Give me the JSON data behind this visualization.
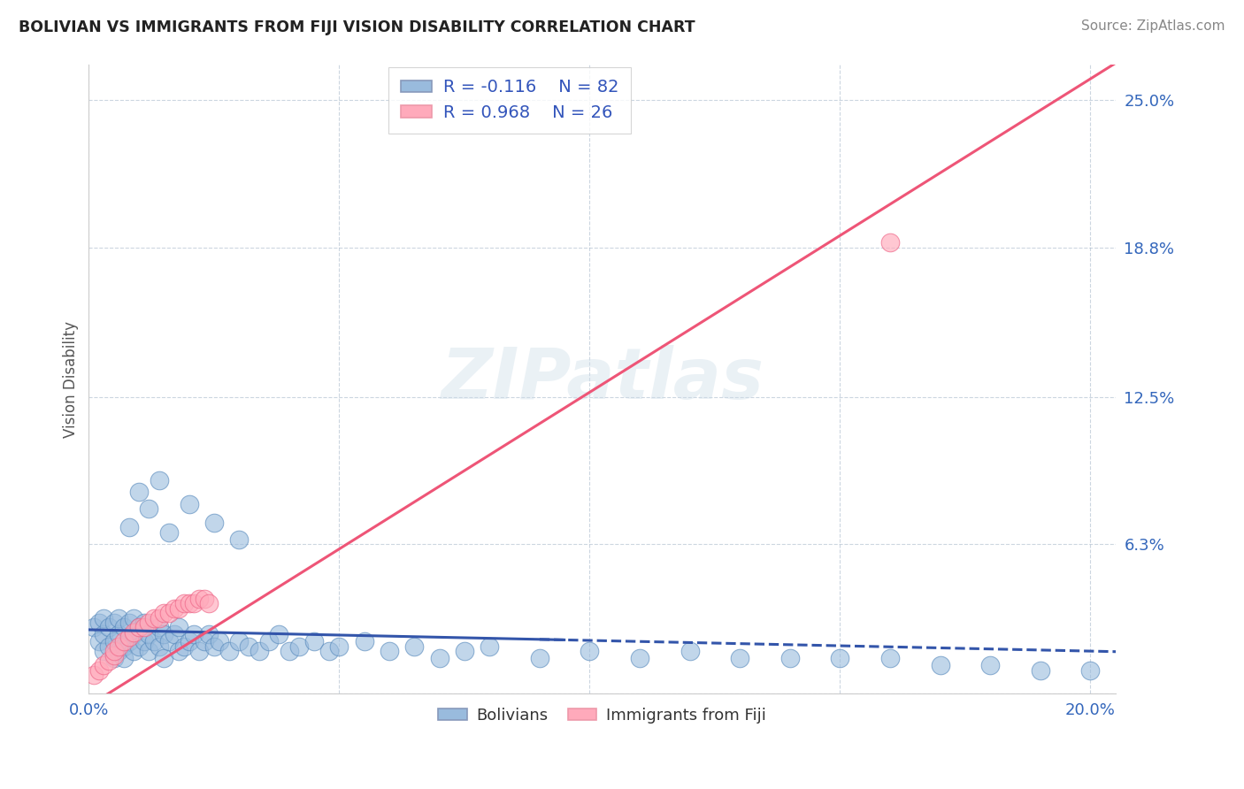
{
  "title": "BOLIVIAN VS IMMIGRANTS FROM FIJI VISION DISABILITY CORRELATION CHART",
  "source": "Source: ZipAtlas.com",
  "ylabel": "Vision Disability",
  "xlim": [
    0.0,
    0.205
  ],
  "ylim": [
    0.0,
    0.265
  ],
  "ytick_vals": [
    0.0,
    0.063,
    0.125,
    0.188,
    0.25
  ],
  "ytick_labels": [
    "",
    "6.3%",
    "12.5%",
    "18.8%",
    "25.0%"
  ],
  "xtick_vals": [
    0.0,
    0.05,
    0.1,
    0.15,
    0.2
  ],
  "xtick_labels": [
    "0.0%",
    "",
    "",
    "",
    "20.0%"
  ],
  "watermark": "ZIPatlas",
  "blue_color": "#99BBDD",
  "blue_edge": "#5588BB",
  "pink_color": "#FFAABB",
  "pink_edge": "#EE6688",
  "line_blue_color": "#3355AA",
  "line_pink_color": "#EE5577",
  "bolivians_x": [
    0.001,
    0.002,
    0.002,
    0.003,
    0.003,
    0.003,
    0.004,
    0.004,
    0.005,
    0.005,
    0.005,
    0.006,
    0.006,
    0.006,
    0.007,
    0.007,
    0.007,
    0.008,
    0.008,
    0.009,
    0.009,
    0.009,
    0.01,
    0.01,
    0.011,
    0.011,
    0.012,
    0.012,
    0.013,
    0.014,
    0.014,
    0.015,
    0.015,
    0.016,
    0.017,
    0.018,
    0.018,
    0.019,
    0.02,
    0.021,
    0.022,
    0.023,
    0.024,
    0.025,
    0.026,
    0.028,
    0.03,
    0.032,
    0.034,
    0.036,
    0.038,
    0.04,
    0.042,
    0.045,
    0.048,
    0.05,
    0.055,
    0.06,
    0.065,
    0.07,
    0.075,
    0.08,
    0.09,
    0.1,
    0.11,
    0.12,
    0.13,
    0.14,
    0.15,
    0.16,
    0.17,
    0.18,
    0.19,
    0.2,
    0.008,
    0.01,
    0.012,
    0.014,
    0.016,
    0.02,
    0.025,
    0.03
  ],
  "bolivians_y": [
    0.028,
    0.022,
    0.03,
    0.018,
    0.025,
    0.032,
    0.02,
    0.028,
    0.015,
    0.022,
    0.03,
    0.018,
    0.025,
    0.032,
    0.02,
    0.028,
    0.015,
    0.022,
    0.03,
    0.018,
    0.025,
    0.032,
    0.02,
    0.028,
    0.022,
    0.03,
    0.018,
    0.025,
    0.022,
    0.028,
    0.02,
    0.025,
    0.015,
    0.022,
    0.025,
    0.018,
    0.028,
    0.02,
    0.022,
    0.025,
    0.018,
    0.022,
    0.025,
    0.02,
    0.022,
    0.018,
    0.022,
    0.02,
    0.018,
    0.022,
    0.025,
    0.018,
    0.02,
    0.022,
    0.018,
    0.02,
    0.022,
    0.018,
    0.02,
    0.015,
    0.018,
    0.02,
    0.015,
    0.018,
    0.015,
    0.018,
    0.015,
    0.015,
    0.015,
    0.015,
    0.012,
    0.012,
    0.01,
    0.01,
    0.07,
    0.085,
    0.078,
    0.09,
    0.068,
    0.08,
    0.072,
    0.065
  ],
  "fiji_x": [
    0.001,
    0.002,
    0.003,
    0.004,
    0.005,
    0.005,
    0.006,
    0.007,
    0.008,
    0.009,
    0.01,
    0.011,
    0.012,
    0.013,
    0.014,
    0.015,
    0.016,
    0.017,
    0.018,
    0.019,
    0.02,
    0.021,
    0.022,
    0.023,
    0.024,
    0.16
  ],
  "fiji_y": [
    0.008,
    0.01,
    0.012,
    0.014,
    0.016,
    0.018,
    0.02,
    0.022,
    0.024,
    0.026,
    0.028,
    0.028,
    0.03,
    0.032,
    0.032,
    0.034,
    0.034,
    0.036,
    0.036,
    0.038,
    0.038,
    0.038,
    0.04,
    0.04,
    0.038,
    0.19
  ]
}
